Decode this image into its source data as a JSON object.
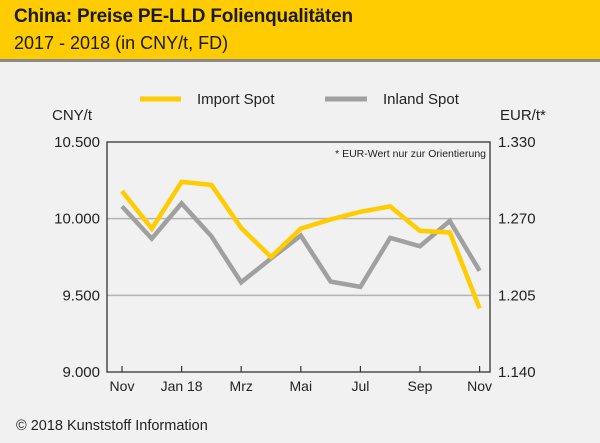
{
  "header": {
    "title": "China: Preise PE-LLD Folienqualitäten",
    "subtitle": "2017 - 2018 (in CNY/t, FD)"
  },
  "footer": {
    "copyright": "© 2018 Kunststoff Information"
  },
  "colors": {
    "header_bg": "#fecc00",
    "import": "#fecc00",
    "inland": "#a0a0a0",
    "background": "#f0f1f0"
  },
  "chart_data": {
    "type": "line",
    "title": "China: Preise PE-LLD Folienqualitäten",
    "subtitle": "2017 - 2018 (in CNY/t, FD)",
    "ylabel": "CNY/t",
    "y2label": "EUR/t*",
    "note": "* EUR-Wert nur zur Orientierung",
    "ylim": [
      9000,
      10500
    ],
    "y2lim": [
      1.14,
      1.33
    ],
    "yticks": [
      {
        "value": 9000,
        "label": "9.000"
      },
      {
        "value": 9500,
        "label": "9.500"
      },
      {
        "value": 10000,
        "label": "10.000"
      },
      {
        "value": 10500,
        "label": "10.500"
      }
    ],
    "y2ticks": [
      "1.140",
      "1.205",
      "1.270",
      "1.330"
    ],
    "gridlines": [
      9500,
      10000
    ],
    "x": [
      "Nov 17",
      "Dez 17",
      "Jan 18",
      "Feb 18",
      "Mrz 18",
      "Apr 18",
      "Mai 18",
      "Jun 18",
      "Jul 18",
      "Aug 18",
      "Sep 18",
      "Okt 18",
      "Nov 18"
    ],
    "xticks": [
      {
        "index": 0,
        "label": "Nov"
      },
      {
        "index": 2,
        "label": "Jan 18"
      },
      {
        "index": 4,
        "label": "Mrz"
      },
      {
        "index": 6,
        "label": "Mai"
      },
      {
        "index": 8,
        "label": "Jul"
      },
      {
        "index": 10,
        "label": "Sep"
      },
      {
        "index": 12,
        "label": "Nov"
      }
    ],
    "legend_position": "top",
    "series": [
      {
        "name": "Import Spot",
        "color": "#fecc00",
        "values": [
          10180,
          9935,
          10240,
          10220,
          9940,
          9750,
          9935,
          9995,
          10045,
          10080,
          9920,
          9910,
          9415
        ]
      },
      {
        "name": "Inland Spot",
        "color": "#a0a0a0",
        "values": [
          10080,
          9870,
          10100,
          9885,
          9585,
          9740,
          9890,
          9590,
          9555,
          9875,
          9820,
          9985,
          9660
        ]
      }
    ]
  }
}
